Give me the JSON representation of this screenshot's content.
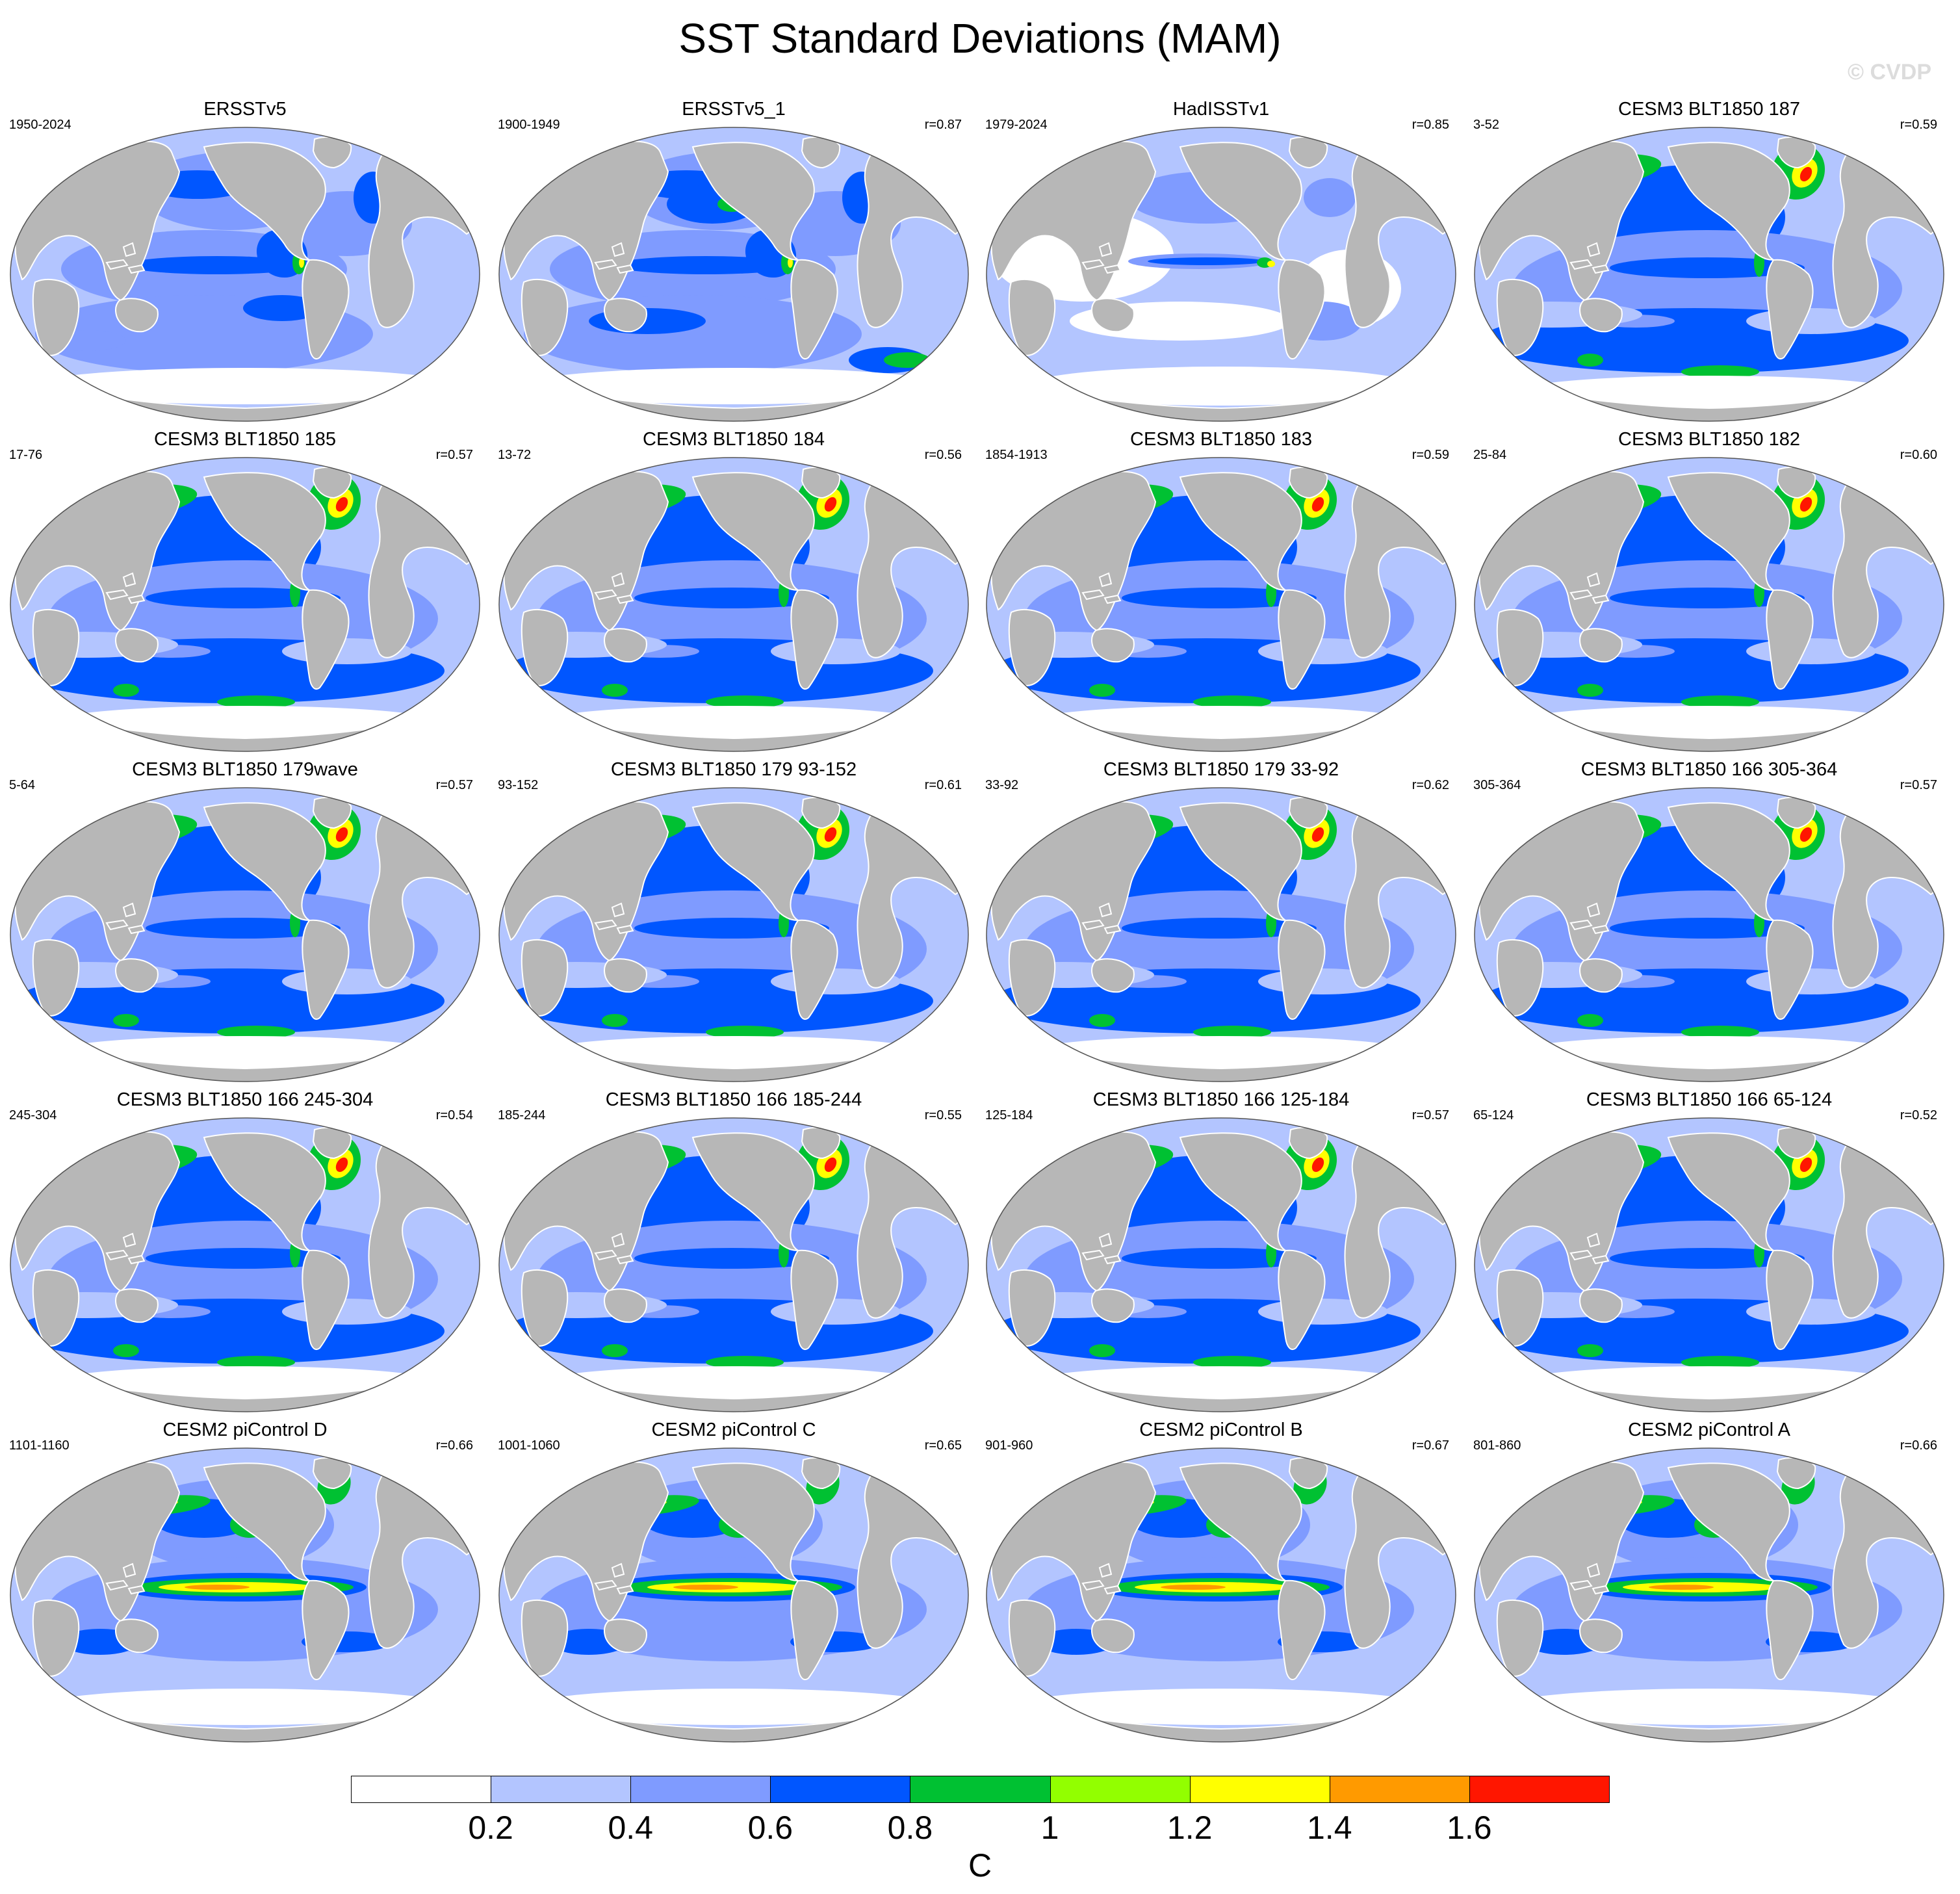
{
  "title": "SST Standard Deviations (MAM)",
  "watermark": "© CVDP",
  "colors": {
    "land": "#b7b7b7",
    "coast": "#ffffff",
    "levels": [
      "#ffffff",
      "#b3c5ff",
      "#7f9bff",
      "#0056ff",
      "#00c132",
      "#92ff00",
      "#ffff00",
      "#ff9a00",
      "#ff1600"
    ]
  },
  "colorbar": {
    "labels": [
      "0.2",
      "0.4",
      "0.6",
      "0.8",
      "1",
      "1.2",
      "1.4",
      "1.6"
    ],
    "unit": "C"
  },
  "panels": [
    {
      "title": "ERSSTv5",
      "years": "1950-2024",
      "corr": "",
      "style": "obs"
    },
    {
      "title": "ERSSTv5_1",
      "years": "1900-1949",
      "corr": "r=0.87",
      "style": "obs2"
    },
    {
      "title": "HadISSTv1",
      "years": "1979-2024",
      "corr": "r=0.85",
      "style": "had"
    },
    {
      "title": "CESM3 BLT1850 187",
      "years": "3-52",
      "corr": "r=0.59",
      "style": "cesm3"
    },
    {
      "title": "CESM3 BLT1850 185",
      "years": "17-76",
      "corr": "r=0.57",
      "style": "cesm3"
    },
    {
      "title": "CESM3 BLT1850 184",
      "years": "13-72",
      "corr": "r=0.56",
      "style": "cesm3"
    },
    {
      "title": "CESM3 BLT1850 183",
      "years": "1854-1913",
      "corr": "r=0.59",
      "style": "cesm3"
    },
    {
      "title": "CESM3 BLT1850 182",
      "years": "25-84",
      "corr": "r=0.60",
      "style": "cesm3"
    },
    {
      "title": "CESM3 BLT1850 179wave",
      "years": "5-64",
      "corr": "r=0.57",
      "style": "cesm3"
    },
    {
      "title": "CESM3 BLT1850 179 93-152",
      "years": "93-152",
      "corr": "r=0.61",
      "style": "cesm3"
    },
    {
      "title": "CESM3 BLT1850 179 33-92",
      "years": "33-92",
      "corr": "r=0.62",
      "style": "cesm3"
    },
    {
      "title": "CESM3 BLT1850 166 305-364",
      "years": "305-364",
      "corr": "r=0.57",
      "style": "cesm3"
    },
    {
      "title": "CESM3 BLT1850 166 245-304",
      "years": "245-304",
      "corr": "r=0.54",
      "style": "cesm3"
    },
    {
      "title": "CESM3 BLT1850 166 185-244",
      "years": "185-244",
      "corr": "r=0.55",
      "style": "cesm3"
    },
    {
      "title": "CESM3 BLT1850 166 125-184",
      "years": "125-184",
      "corr": "r=0.57",
      "style": "cesm3"
    },
    {
      "title": "CESM3 BLT1850 166 65-124",
      "years": "65-124",
      "corr": "r=0.52",
      "style": "cesm3"
    },
    {
      "title": "CESM2 piControl D",
      "years": "1101-1160",
      "corr": "r=0.66",
      "style": "cesm2"
    },
    {
      "title": "CESM2 piControl C",
      "years": "1001-1060",
      "corr": "r=0.65",
      "style": "cesm2"
    },
    {
      "title": "CESM2 piControl B",
      "years": "901-960",
      "corr": "r=0.67",
      "style": "cesm2"
    },
    {
      "title": "CESM2 piControl A",
      "years": "801-860",
      "corr": "r=0.66",
      "style": "cesm2"
    }
  ]
}
